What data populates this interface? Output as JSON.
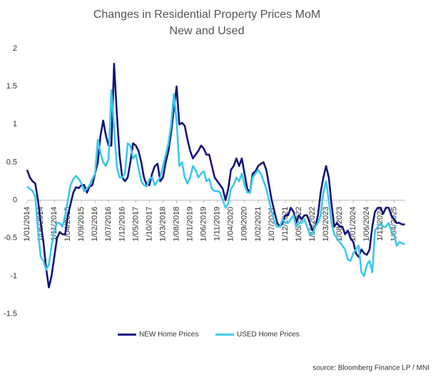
{
  "chart_data": {
    "type": "line",
    "title": "Changes in Residential Property Prices MoM",
    "subtitle": "New and Used",
    "source": "source: Bloomberg Finance LP / MNI",
    "categories": [
      "1/01/2014",
      null,
      null,
      null,
      null,
      "1/06/2014",
      null,
      null,
      null,
      null,
      "1/11/2014",
      null,
      null,
      null,
      null,
      "1/04/2015",
      null,
      null,
      null,
      null,
      "1/09/2015",
      null,
      null,
      null,
      null,
      "1/02/2016",
      null,
      null,
      null,
      null,
      "1/07/2016",
      null,
      null,
      null,
      null,
      "1/12/2016",
      null,
      null,
      null,
      null,
      "1/05/2017",
      null,
      null,
      null,
      null,
      "1/10/2017",
      null,
      null,
      null,
      null,
      "1/03/2018",
      null,
      null,
      null,
      null,
      "1/08/2018",
      null,
      null,
      null,
      null,
      "1/01/2019",
      null,
      null,
      null,
      null,
      "1/06/2019",
      null,
      null,
      null,
      null,
      "1/11/2019",
      null,
      null,
      null,
      null,
      "1/04/2020",
      null,
      null,
      null,
      null,
      "1/09/2020",
      null,
      null,
      null,
      null,
      "1/02/2021",
      null,
      null,
      null,
      null,
      "1/07/2021",
      null,
      null,
      null,
      null,
      "1/12/2021",
      null,
      null,
      null,
      null,
      "1/05/2022",
      null,
      null,
      null,
      null,
      "1/10/2022",
      null,
      null,
      null,
      null,
      "1/03/2023",
      null,
      null,
      null,
      null,
      "1/08/2023",
      null,
      null,
      null,
      null,
      "1/01/2024",
      null,
      null,
      null,
      null,
      "1/06/2024",
      null,
      null,
      null,
      null,
      "1/11/2024",
      null,
      null,
      null,
      null,
      "1/04/2025",
      null,
      null,
      null,
      null
    ],
    "series": [
      {
        "name": "NEW Home Prices",
        "color": "#14147a",
        "values": [
          0.4,
          0.3,
          0.25,
          0.22,
          0.0,
          -0.3,
          -0.55,
          -0.9,
          -1.15,
          -1.0,
          -0.75,
          -0.5,
          -0.42,
          -0.45,
          -0.45,
          -0.2,
          -0.05,
          0.1,
          0.17,
          0.16,
          0.2,
          0.2,
          0.1,
          0.18,
          0.2,
          0.35,
          0.5,
          0.85,
          1.05,
          0.85,
          0.72,
          0.72,
          1.8,
          1.15,
          0.6,
          0.3,
          0.25,
          0.3,
          0.5,
          0.75,
          0.72,
          0.65,
          0.5,
          0.3,
          0.2,
          0.2,
          0.35,
          0.45,
          0.48,
          0.25,
          0.3,
          0.5,
          0.65,
          0.9,
          1.2,
          1.5,
          1.0,
          1.02,
          0.98,
          0.8,
          0.65,
          0.55,
          0.6,
          0.65,
          0.72,
          0.68,
          0.6,
          0.6,
          0.45,
          0.3,
          0.25,
          0.2,
          0.15,
          0.0,
          0.15,
          0.4,
          0.45,
          0.55,
          0.45,
          0.55,
          0.35,
          0.15,
          0.1,
          0.35,
          0.38,
          0.45,
          0.48,
          0.5,
          0.4,
          0.2,
          0.0,
          -0.15,
          -0.3,
          -0.35,
          -0.3,
          -0.2,
          -0.2,
          -0.1,
          -0.15,
          -0.3,
          -0.2,
          -0.25,
          -0.2,
          -0.2,
          -0.3,
          -0.4,
          -0.35,
          -0.2,
          0.1,
          0.3,
          0.45,
          0.3,
          -0.05,
          -0.35,
          -0.3,
          -0.35,
          -0.35,
          -0.45,
          -0.4,
          -0.5,
          -0.55,
          -0.7,
          -0.75,
          -0.65,
          -0.7,
          -0.72,
          -0.65,
          -0.35,
          -0.15,
          -0.1,
          -0.1,
          -0.18,
          -0.1,
          -0.1,
          -0.2,
          -0.25,
          -0.3,
          -0.3,
          -0.32,
          -0.32
        ]
      },
      {
        "name": "USED Home Prices",
        "color": "#3cc8e8",
        "values": [
          0.18,
          0.15,
          0.12,
          0.05,
          -0.4,
          -0.75,
          -0.8,
          -0.92,
          -0.85,
          -0.6,
          -0.4,
          -0.3,
          -0.3,
          -0.35,
          -0.2,
          0.0,
          0.2,
          0.28,
          0.32,
          0.28,
          0.22,
          0.12,
          0.15,
          0.2,
          0.28,
          0.35,
          0.8,
          0.62,
          0.5,
          0.45,
          0.55,
          1.45,
          0.95,
          0.45,
          0.3,
          0.3,
          0.35,
          0.75,
          0.72,
          0.55,
          0.6,
          0.42,
          0.25,
          0.2,
          0.18,
          0.28,
          0.3,
          0.2,
          0.25,
          0.3,
          0.45,
          0.6,
          0.75,
          1.0,
          1.4,
          1.05,
          0.45,
          0.5,
          0.3,
          0.22,
          0.3,
          0.45,
          0.4,
          0.3,
          0.35,
          0.38,
          0.25,
          0.28,
          0.15,
          0.12,
          0.12,
          0.1,
          0.0,
          -0.1,
          -0.05,
          0.15,
          0.2,
          0.3,
          0.25,
          0.35,
          0.2,
          0.1,
          0.1,
          0.3,
          0.35,
          0.4,
          0.35,
          0.25,
          0.15,
          0.0,
          -0.15,
          -0.3,
          -0.35,
          -0.35,
          -0.25,
          -0.3,
          -0.3,
          -0.25,
          -0.2,
          -0.35,
          -0.3,
          -0.3,
          -0.25,
          -0.35,
          -0.45,
          -0.45,
          -0.35,
          -0.3,
          -0.2,
          0.1,
          0.25,
          0.0,
          -0.3,
          -0.45,
          -0.5,
          -0.55,
          -0.6,
          -0.65,
          -0.78,
          -0.8,
          -0.7,
          -0.65,
          -0.6,
          -0.95,
          -1.0,
          -0.85,
          -0.8,
          -0.95,
          -0.4,
          -0.35,
          -0.3,
          -0.35,
          -0.35,
          -0.3,
          -0.4,
          -0.45,
          -0.6,
          -0.55,
          -0.57,
          -0.58
        ]
      }
    ],
    "ylim": [
      -1.5,
      2
    ],
    "yticks": [
      2,
      1.5,
      1,
      0.5,
      0,
      -0.5,
      -1,
      -1.5
    ],
    "grid": false,
    "legend": "bottom"
  }
}
